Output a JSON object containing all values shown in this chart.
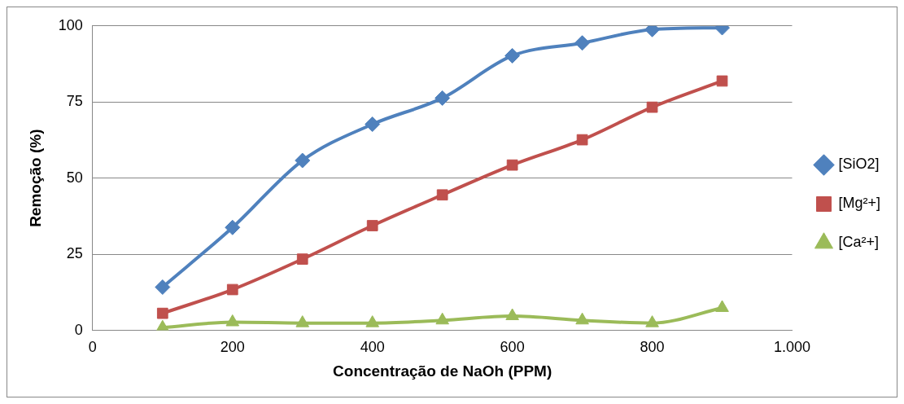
{
  "chart_data": {
    "type": "line",
    "xlabel": "Concentração de NaOh (PPM)",
    "ylabel": "Remoção (%)",
    "x": [
      100,
      200,
      300,
      400,
      500,
      600,
      700,
      800,
      900
    ],
    "xlim": [
      0,
      1000
    ],
    "xticks": [
      0,
      200,
      400,
      600,
      800,
      {
        "value": 1000,
        "label": "1.000"
      }
    ],
    "ylim": [
      0,
      100
    ],
    "yticks": [
      0,
      25,
      50,
      75,
      100
    ],
    "grid": "y",
    "legend": "right",
    "series": [
      {
        "name": "[SiO2]",
        "color": "#4f81bd",
        "marker": "diamond",
        "values": [
          14.2,
          33.8,
          55.8,
          67.7,
          76.3,
          90.2,
          94.4,
          98.8,
          99.4
        ]
      },
      {
        "name": "[Mg²+]",
        "color": "#c0504d",
        "marker": "square",
        "values": [
          5.6,
          13.4,
          23.4,
          34.4,
          44.5,
          54.3,
          62.6,
          73.3,
          81.9
        ]
      },
      {
        "name": "[Ca²+]",
        "color": "#9bbb59",
        "marker": "triangle",
        "values": [
          0.9,
          2.7,
          2.4,
          2.4,
          3.3,
          4.7,
          3.3,
          2.4,
          7.4
        ]
      }
    ]
  }
}
